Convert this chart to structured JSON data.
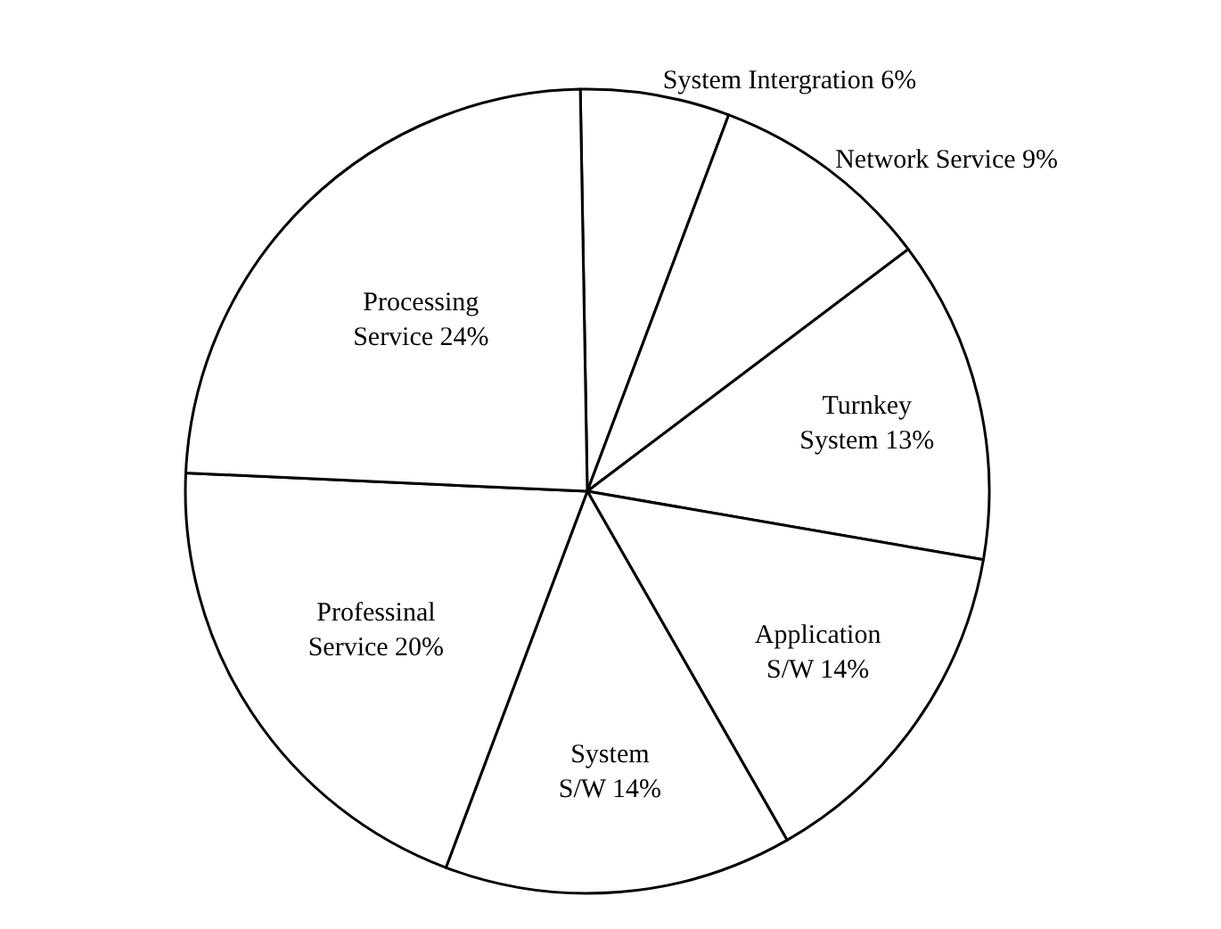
{
  "chart_data": {
    "type": "pie",
    "categories": [
      "System Intergration",
      "Network Service",
      "Turnkey System",
      "Application S/W",
      "System S/W",
      "Professinal Service",
      "Processing Service"
    ],
    "values": [
      6,
      9,
      13,
      14,
      14,
      20,
      24
    ],
    "value_labels": [
      "6%",
      "9%",
      "13%",
      "14%",
      "14%",
      "20%",
      "24%"
    ],
    "colors": [
      "#ffffff",
      "#ffffff",
      "#ffffff",
      "#ffffff",
      "#ffffff",
      "#ffffff",
      "#ffffff"
    ],
    "legend": false
  }
}
